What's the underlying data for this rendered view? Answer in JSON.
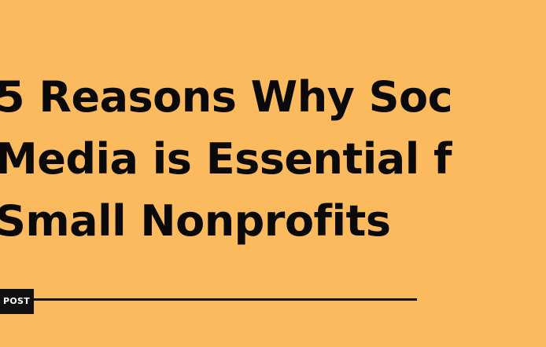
{
  "headline": {
    "line1": "5 Reasons Why Soc",
    "line2": "Media is Essential f",
    "line3": "Small Nonprofits"
  },
  "badge": {
    "label": "POST"
  },
  "colors": {
    "background": "#fcba5e",
    "text": "#0a0a0a",
    "badge_bg": "#111111",
    "badge_text": "#ffffff"
  }
}
